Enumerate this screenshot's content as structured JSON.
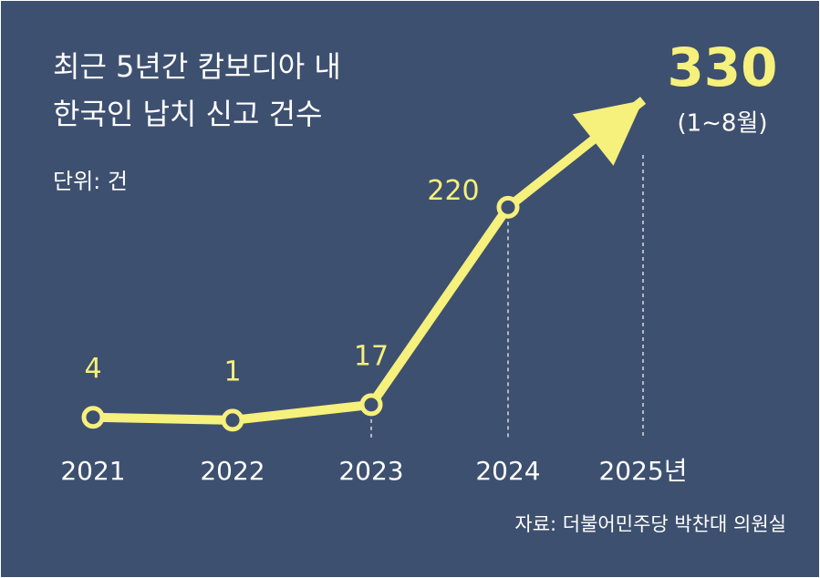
{
  "chart_data": {
    "type": "line",
    "title": [
      "최근 5년간 캄보디아 내",
      "한국인 납치 신고 건수"
    ],
    "subtitle": "단위: 건",
    "categories": [
      "2021",
      "2022",
      "2023",
      "2024",
      "2025년"
    ],
    "values": [
      4,
      1,
      17,
      220,
      330
    ],
    "annotation": "(1∼8월)",
    "source": "자료: 더불어민주당 박찬대 의원실",
    "color": "#f6f07c",
    "ylim": [
      0,
      330
    ]
  }
}
